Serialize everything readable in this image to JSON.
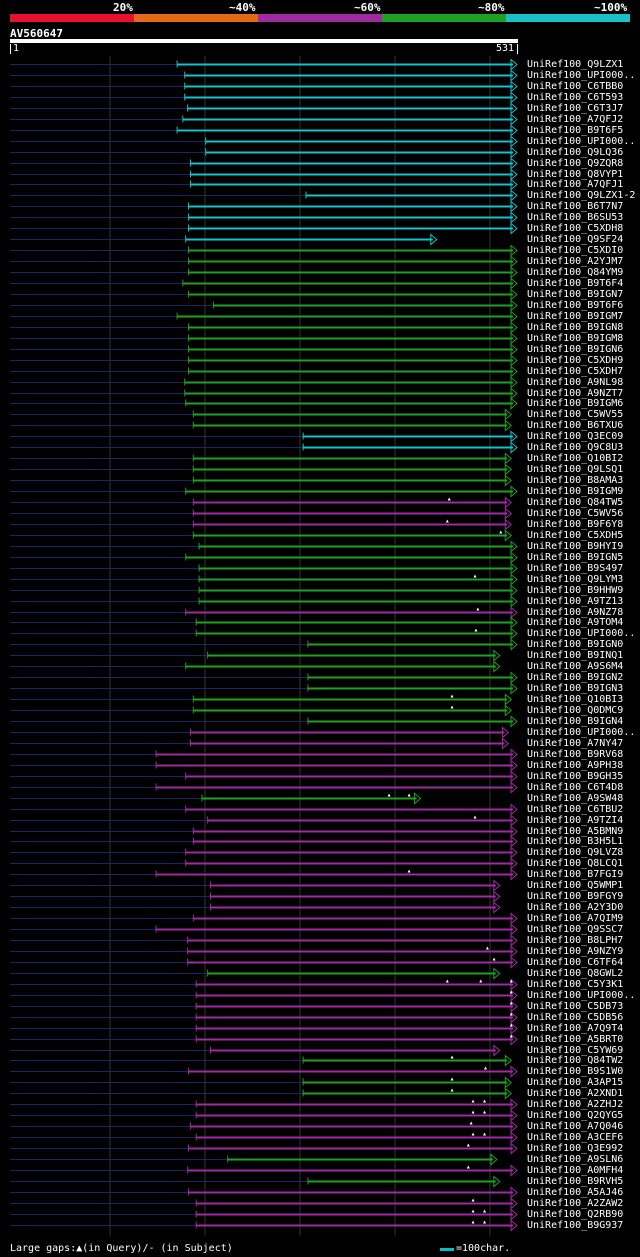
{
  "legend": {
    "segments": [
      {
        "label": "20%",
        "color": "#e8102e"
      },
      {
        "label": "~40%",
        "color": "#e06a18"
      },
      {
        "label": "~60%",
        "color": "#a02aa0"
      },
      {
        "label": "~80%",
        "color": "#20a020"
      },
      {
        "label": "~100%",
        "color": "#18c0c8"
      }
    ]
  },
  "query": {
    "name": "AV560647",
    "start_label": "1",
    "end_label": "531",
    "length": 531
  },
  "footer": {
    "gaps": "Large gaps:▲(in Query)/- (in Subject)",
    "scale": "=100char."
  },
  "hits": [
    {
      "name": "UniRef100_Q9LZX1",
      "start": 175,
      "end": 531,
      "color": "cyan",
      "marks": []
    },
    {
      "name": "UniRef100_UPI000..",
      "start": 183,
      "end": 531,
      "color": "cyan",
      "marks": []
    },
    {
      "name": "UniRef100_C6TBB0",
      "start": 183,
      "end": 531,
      "color": "cyan",
      "marks": []
    },
    {
      "name": "UniRef100_C6T593",
      "start": 183,
      "end": 531,
      "color": "cyan",
      "marks": []
    },
    {
      "name": "UniRef100_C6T3J7",
      "start": 186,
      "end": 531,
      "color": "cyan",
      "marks": []
    },
    {
      "name": "UniRef100_A7QFJ2",
      "start": 181,
      "end": 531,
      "color": "cyan",
      "marks": []
    },
    {
      "name": "UniRef100_B9T6F5",
      "start": 175,
      "end": 531,
      "color": "cyan",
      "marks": []
    },
    {
      "name": "UniRef100_UPI000..",
      "start": 205,
      "end": 531,
      "color": "cyan",
      "marks": []
    },
    {
      "name": "UniRef100_Q9LQ36",
      "start": 205,
      "end": 531,
      "color": "cyan",
      "marks": []
    },
    {
      "name": "UniRef100_Q9ZQR8",
      "start": 189,
      "end": 531,
      "color": "cyan",
      "marks": []
    },
    {
      "name": "UniRef100_Q8VYP1",
      "start": 189,
      "end": 531,
      "color": "cyan",
      "marks": []
    },
    {
      "name": "UniRef100_A7QFJ1",
      "start": 189,
      "end": 531,
      "color": "cyan",
      "marks": []
    },
    {
      "name": "UniRef100_Q9LZX1-2",
      "start": 310,
      "end": 531,
      "color": "cyan",
      "marks": []
    },
    {
      "name": "UniRef100_B6T7N7",
      "start": 187,
      "end": 531,
      "color": "cyan",
      "marks": []
    },
    {
      "name": "UniRef100_B6SU53",
      "start": 187,
      "end": 531,
      "color": "cyan",
      "marks": []
    },
    {
      "name": "UniRef100_C5XDH8",
      "start": 187,
      "end": 531,
      "color": "cyan",
      "marks": []
    },
    {
      "name": "UniRef100_Q9SF24",
      "start": 184,
      "end": 447,
      "color": "cyan",
      "marks": []
    },
    {
      "name": "UniRef100_C5XDI0",
      "start": 187,
      "end": 531,
      "color": "green",
      "marks": []
    },
    {
      "name": "UniRef100_A2YJM7",
      "start": 187,
      "end": 531,
      "color": "green",
      "marks": []
    },
    {
      "name": "UniRef100_Q84YM9",
      "start": 187,
      "end": 531,
      "color": "green",
      "marks": []
    },
    {
      "name": "UniRef100_B9T6F4",
      "start": 181,
      "end": 531,
      "color": "green",
      "marks": []
    },
    {
      "name": "UniRef100_B9IGN7",
      "start": 187,
      "end": 531,
      "color": "green",
      "marks": []
    },
    {
      "name": "UniRef100_B9T6F6",
      "start": 213,
      "end": 531,
      "color": "green",
      "marks": []
    },
    {
      "name": "UniRef100_B9IGM7",
      "start": 175,
      "end": 531,
      "color": "green",
      "marks": []
    },
    {
      "name": "UniRef100_B9IGN8",
      "start": 187,
      "end": 531,
      "color": "green",
      "marks": []
    },
    {
      "name": "UniRef100_B9IGM8",
      "start": 187,
      "end": 531,
      "color": "green",
      "marks": []
    },
    {
      "name": "UniRef100_B9IGN6",
      "start": 187,
      "end": 531,
      "color": "green",
      "marks": []
    },
    {
      "name": "UniRef100_C5XDH9",
      "start": 187,
      "end": 531,
      "color": "green",
      "marks": []
    },
    {
      "name": "UniRef100_C5XDH7",
      "start": 187,
      "end": 531,
      "color": "green",
      "marks": []
    },
    {
      "name": "UniRef100_A9NL98",
      "start": 183,
      "end": 531,
      "color": "green",
      "marks": []
    },
    {
      "name": "UniRef100_A9NZT7",
      "start": 183,
      "end": 531,
      "color": "green",
      "marks": []
    },
    {
      "name": "UniRef100_B9IGM6",
      "start": 184,
      "end": 531,
      "color": "green",
      "marks": []
    },
    {
      "name": "UniRef100_C5WV55",
      "start": 192,
      "end": 525,
      "color": "green",
      "marks": []
    },
    {
      "name": "UniRef100_B6TXU6",
      "start": 192,
      "end": 525,
      "color": "green",
      "marks": []
    },
    {
      "name": "UniRef100_Q3EC09",
      "start": 307,
      "end": 531,
      "color": "cyan",
      "marks": []
    },
    {
      "name": "UniRef100_Q9C8U3",
      "start": 307,
      "end": 531,
      "color": "cyan",
      "marks": []
    },
    {
      "name": "UniRef100_Q10BI2",
      "start": 192,
      "end": 525,
      "color": "green",
      "marks": []
    },
    {
      "name": "UniRef100_Q9LSQ1",
      "start": 192,
      "end": 525,
      "color": "green",
      "marks": []
    },
    {
      "name": "UniRef100_B8AMA3",
      "start": 192,
      "end": 525,
      "color": "green",
      "marks": []
    },
    {
      "name": "UniRef100_B9IGM9",
      "start": 184,
      "end": 531,
      "color": "green",
      "marks": []
    },
    {
      "name": "UniRef100_Q84TW5",
      "start": 192,
      "end": 525,
      "color": "magenta",
      "marks": [
        460
      ]
    },
    {
      "name": "UniRef100_C5WV56",
      "start": 192,
      "end": 525,
      "color": "magenta",
      "marks": []
    },
    {
      "name": "UniRef100_B9F6Y8",
      "start": 192,
      "end": 525,
      "color": "magenta",
      "marks": [
        458
      ]
    },
    {
      "name": "UniRef100_C5XDH5",
      "start": 192,
      "end": 525,
      "color": "green",
      "marks": [
        514
      ]
    },
    {
      "name": "UniRef100_B9HYI9",
      "start": 198,
      "end": 531,
      "color": "green",
      "marks": []
    },
    {
      "name": "UniRef100_B9IGN5",
      "start": 184,
      "end": 531,
      "color": "green",
      "marks": []
    },
    {
      "name": "UniRef100_B9S497",
      "start": 198,
      "end": 531,
      "color": "green",
      "marks": []
    },
    {
      "name": "UniRef100_Q9LYM3",
      "start": 198,
      "end": 531,
      "color": "green",
      "marks": [
        487
      ]
    },
    {
      "name": "UniRef100_B9HHW9",
      "start": 198,
      "end": 531,
      "color": "green",
      "marks": []
    },
    {
      "name": "UniRef100_A9TZ13",
      "start": 198,
      "end": 531,
      "color": "green",
      "marks": []
    },
    {
      "name": "UniRef100_A9NZ78",
      "start": 184,
      "end": 531,
      "color": "magenta",
      "marks": [
        490
      ]
    },
    {
      "name": "UniRef100_A9TOM4",
      "start": 195,
      "end": 531,
      "color": "green",
      "marks": []
    },
    {
      "name": "UniRef100_UPI000..",
      "start": 195,
      "end": 531,
      "color": "green",
      "marks": [
        488
      ]
    },
    {
      "name": "UniRef100_B9IGN0",
      "start": 312,
      "end": 531,
      "color": "green",
      "marks": []
    },
    {
      "name": "UniRef100_B9INQ1",
      "start": 207,
      "end": 513,
      "color": "green",
      "marks": []
    },
    {
      "name": "UniRef100_A9S6M4",
      "start": 184,
      "end": 513,
      "color": "green",
      "marks": []
    },
    {
      "name": "UniRef100_B9IGN2",
      "start": 312,
      "end": 531,
      "color": "green",
      "marks": []
    },
    {
      "name": "UniRef100_B9IGN3",
      "start": 312,
      "end": 531,
      "color": "green",
      "marks": []
    },
    {
      "name": "UniRef100_Q10BI3",
      "start": 192,
      "end": 525,
      "color": "green",
      "marks": [
        463
      ]
    },
    {
      "name": "UniRef100_Q0DMC9",
      "start": 192,
      "end": 525,
      "color": "green",
      "marks": [
        463
      ]
    },
    {
      "name": "UniRef100_B9IGN4",
      "start": 312,
      "end": 531,
      "color": "green",
      "marks": []
    },
    {
      "name": "UniRef100_UPI000..",
      "start": 189,
      "end": 522,
      "color": "magenta",
      "marks": []
    },
    {
      "name": "UniRef100_A7NY47",
      "start": 189,
      "end": 522,
      "color": "magenta",
      "marks": []
    },
    {
      "name": "UniRef100_B9RV68",
      "start": 153,
      "end": 531,
      "color": "magenta",
      "marks": []
    },
    {
      "name": "UniRef100_A9PH38",
      "start": 153,
      "end": 531,
      "color": "magenta",
      "marks": []
    },
    {
      "name": "UniRef100_B9GH35",
      "start": 184,
      "end": 531,
      "color": "magenta",
      "marks": []
    },
    {
      "name": "UniRef100_C6T4D8",
      "start": 153,
      "end": 531,
      "color": "magenta",
      "marks": []
    },
    {
      "name": "UniRef100_A9SW48",
      "start": 201,
      "end": 430,
      "color": "green",
      "marks": [
        397,
        418
      ]
    },
    {
      "name": "UniRef100_C6TBU2",
      "start": 184,
      "end": 531,
      "color": "magenta",
      "marks": []
    },
    {
      "name": "UniRef100_A9TZI4",
      "start": 207,
      "end": 531,
      "color": "magenta",
      "marks": [
        487
      ]
    },
    {
      "name": "UniRef100_A5BMN9",
      "start": 192,
      "end": 531,
      "color": "magenta",
      "marks": []
    },
    {
      "name": "UniRef100_B3H5L1",
      "start": 192,
      "end": 531,
      "color": "magenta",
      "marks": []
    },
    {
      "name": "UniRef100_Q9LVZ8",
      "start": 184,
      "end": 531,
      "color": "magenta",
      "marks": []
    },
    {
      "name": "UniRef100_Q8LCQ1",
      "start": 184,
      "end": 531,
      "color": "magenta",
      "marks": []
    },
    {
      "name": "UniRef100_B7FGI9",
      "start": 153,
      "end": 531,
      "color": "magenta",
      "marks": [
        418
      ]
    },
    {
      "name": "UniRef100_Q5WMP1",
      "start": 210,
      "end": 513,
      "color": "magenta",
      "marks": []
    },
    {
      "name": "UniRef100_B9FGY9",
      "start": 210,
      "end": 513,
      "color": "magenta",
      "marks": []
    },
    {
      "name": "UniRef100_A2Y3D0",
      "start": 210,
      "end": 513,
      "color": "magenta",
      "marks": []
    },
    {
      "name": "UniRef100_A7QIM9",
      "start": 192,
      "end": 531,
      "color": "magenta",
      "marks": []
    },
    {
      "name": "UniRef100_Q9SSC7",
      "start": 153,
      "end": 531,
      "color": "magenta",
      "marks": []
    },
    {
      "name": "UniRef100_B8LPH7",
      "start": 186,
      "end": 531,
      "color": "magenta",
      "marks": []
    },
    {
      "name": "UniRef100_A9NZY9",
      "start": 186,
      "end": 531,
      "color": "magenta",
      "marks": [
        500
      ]
    },
    {
      "name": "UniRef100_C6TF64",
      "start": 186,
      "end": 531,
      "color": "magenta",
      "marks": [
        507
      ]
    },
    {
      "name": "UniRef100_Q8GWL2",
      "start": 207,
      "end": 513,
      "color": "green",
      "marks": []
    },
    {
      "name": "UniRef100_C5Y3K1",
      "start": 195,
      "end": 531,
      "color": "magenta",
      "marks": [
        458,
        493,
        525
      ]
    },
    {
      "name": "UniRef100_UPI000..",
      "start": 195,
      "end": 531,
      "color": "magenta",
      "marks": [
        525
      ]
    },
    {
      "name": "UniRef100_C5DB73",
      "start": 195,
      "end": 531,
      "color": "magenta",
      "marks": [
        525
      ]
    },
    {
      "name": "UniRef100_C5DB56",
      "start": 195,
      "end": 531,
      "color": "magenta",
      "marks": [
        525
      ]
    },
    {
      "name": "UniRef100_A7Q9T4",
      "start": 195,
      "end": 531,
      "color": "magenta",
      "marks": [
        525
      ]
    },
    {
      "name": "UniRef100_A5BRT0",
      "start": 195,
      "end": 531,
      "color": "magenta",
      "marks": [
        525
      ]
    },
    {
      "name": "UniRef100_C5YW69",
      "start": 210,
      "end": 513,
      "color": "magenta",
      "marks": []
    },
    {
      "name": "UniRef100_Q84TW2",
      "start": 307,
      "end": 525,
      "color": "green",
      "marks": [
        463
      ]
    },
    {
      "name": "UniRef100_B9S1W0",
      "start": 187,
      "end": 531,
      "color": "magenta",
      "marks": [
        498
      ]
    },
    {
      "name": "UniRef100_A3AP15",
      "start": 307,
      "end": 525,
      "color": "green",
      "marks": [
        463
      ]
    },
    {
      "name": "UniRef100_A2XND1",
      "start": 307,
      "end": 525,
      "color": "green",
      "marks": [
        463
      ]
    },
    {
      "name": "UniRef100_A2ZHJ2",
      "start": 195,
      "end": 531,
      "color": "magenta",
      "marks": [
        485,
        497
      ]
    },
    {
      "name": "UniRef100_Q2QYG5",
      "start": 195,
      "end": 531,
      "color": "magenta",
      "marks": [
        485,
        497
      ]
    },
    {
      "name": "UniRef100_A7Q046",
      "start": 189,
      "end": 531,
      "color": "magenta",
      "marks": [
        483
      ]
    },
    {
      "name": "UniRef100_A3CEF6",
      "start": 195,
      "end": 531,
      "color": "magenta",
      "marks": [
        485,
        497
      ]
    },
    {
      "name": "UniRef100_Q3E992",
      "start": 187,
      "end": 531,
      "color": "magenta",
      "marks": [
        480
      ]
    },
    {
      "name": "UniRef100_A9SLN6",
      "start": 228,
      "end": 510,
      "color": "green",
      "marks": []
    },
    {
      "name": "UniRef100_A0MFH4",
      "start": 186,
      "end": 531,
      "color": "magenta",
      "marks": [
        480
      ]
    },
    {
      "name": "UniRef100_B9RVH5",
      "start": 312,
      "end": 513,
      "color": "green",
      "marks": []
    },
    {
      "name": "UniRef100_A5AJ46",
      "start": 187,
      "end": 531,
      "color": "magenta",
      "marks": []
    },
    {
      "name": "UniRef100_A2ZAW2",
      "start": 195,
      "end": 531,
      "color": "magenta",
      "marks": [
        485
      ]
    },
    {
      "name": "UniRef100_Q2RB90",
      "start": 195,
      "end": 531,
      "color": "magenta",
      "marks": [
        485,
        497
      ]
    },
    {
      "name": "UniRef100_B9G937",
      "start": 195,
      "end": 531,
      "color": "magenta",
      "marks": [
        485,
        497
      ]
    }
  ]
}
